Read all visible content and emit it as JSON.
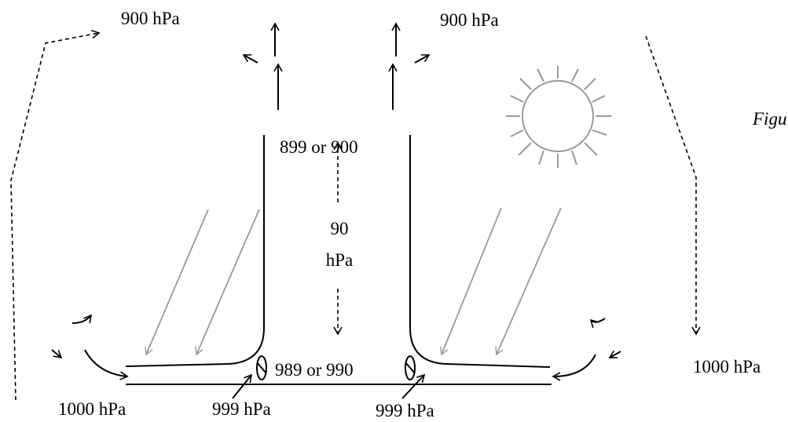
{
  "labels": {
    "top_left_pressure": "900 hPa",
    "top_right_pressure": "900 hPa",
    "upper_center_pressure": "899 or 900",
    "difference_value": "90",
    "difference_unit": "hPa",
    "lower_center_pressure": "989 or 990",
    "bottom_left_pressure": "1000 hPa",
    "right_pressure": "1000 hPa",
    "tornado_left_pressure": "999 hPa",
    "tornado_right_pressure": "999 hPa",
    "figure_label": "Figu"
  },
  "icons": {
    "sun": "sun-icon",
    "sun_rays": "sunlight-ray-arrows",
    "circulation": "dashed-circulation-arrows"
  },
  "colors": {
    "ink": "#000000",
    "sunlight": "#999999"
  }
}
